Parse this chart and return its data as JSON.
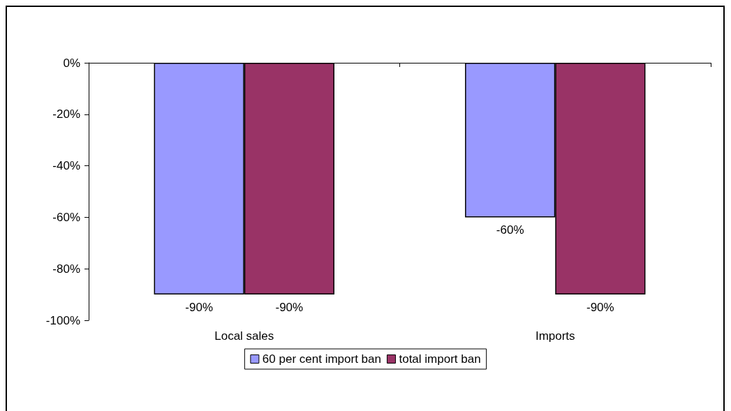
{
  "chart_data": {
    "type": "bar",
    "categories": [
      "Local sales",
      "Imports"
    ],
    "series": [
      {
        "name": "60 per cent import ban",
        "color": "#9999ff",
        "values": [
          -90,
          -60
        ],
        "value_labels": [
          "-90%",
          "-60%"
        ]
      },
      {
        "name": "total import ban",
        "color": "#993366",
        "values": [
          -90,
          -90
        ],
        "value_labels": [
          "-90%",
          "-90%"
        ]
      }
    ],
    "ylim": [
      -100,
      0
    ],
    "yticks": [
      {
        "value": -100,
        "label": "-100%"
      },
      {
        "value": -80,
        "label": "-80%"
      },
      {
        "value": -60,
        "label": "-60%"
      },
      {
        "value": -40,
        "label": "-40%"
      },
      {
        "value": -20,
        "label": "-20%"
      },
      {
        "value": 0,
        "label": "0%"
      }
    ],
    "grid": false,
    "legend": "bottom"
  }
}
